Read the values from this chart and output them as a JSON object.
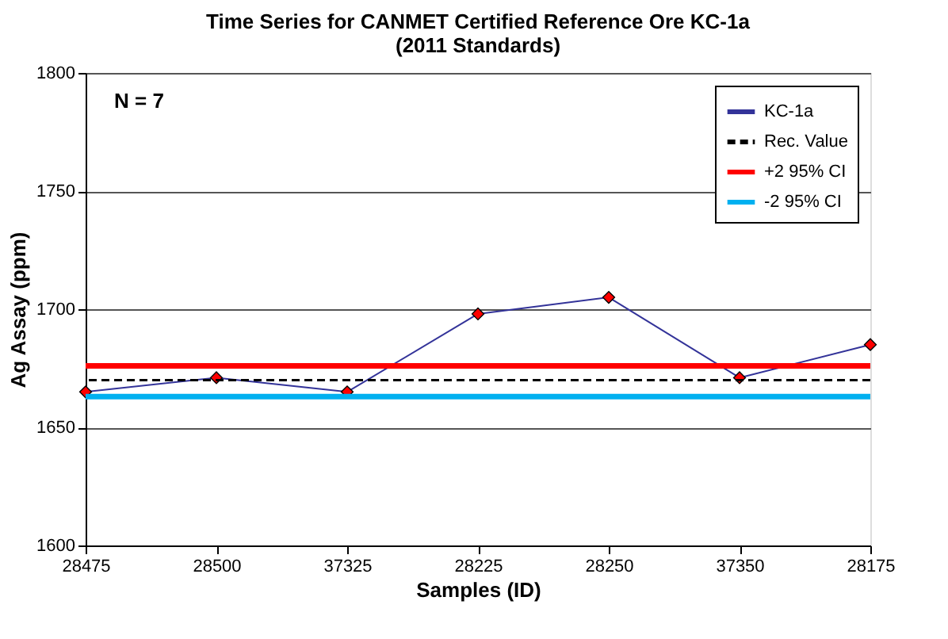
{
  "chart_data": {
    "type": "line",
    "title": "Time Series for CANMET Certified Reference Ore KC-1a",
    "subtitle": "(2011 Standards)",
    "xlabel": "Samples (ID)",
    "ylabel": "Ag Assay (ppm)",
    "categories": [
      "28475",
      "28500",
      "37325",
      "28225",
      "28250",
      "37350",
      "28175"
    ],
    "series": [
      {
        "name": "KC-1a",
        "color": "#333399",
        "values": [
          1665,
          1671,
          1665,
          1698,
          1705,
          1671,
          1685
        ]
      }
    ],
    "marker": "diamond",
    "ylim": [
      1600,
      1800
    ],
    "yticks": [
      1600,
      1650,
      1700,
      1750,
      1800
    ],
    "grid": "y",
    "legend": "top right",
    "ref_lines": [
      {
        "axis": "y",
        "value": 1670,
        "label": "Rec. Value",
        "color": "#000000",
        "line_style": "dashed"
      },
      {
        "axis": "y",
        "value": 1676,
        "label": "+2 95% CI",
        "color": "#ff0000",
        "line_style": "solid"
      },
      {
        "axis": "y",
        "value": 1663,
        "label": "-2 95% CI",
        "color": "#00b0f0",
        "line_style": "solid"
      }
    ],
    "annotations": [
      "N = 7"
    ]
  }
}
